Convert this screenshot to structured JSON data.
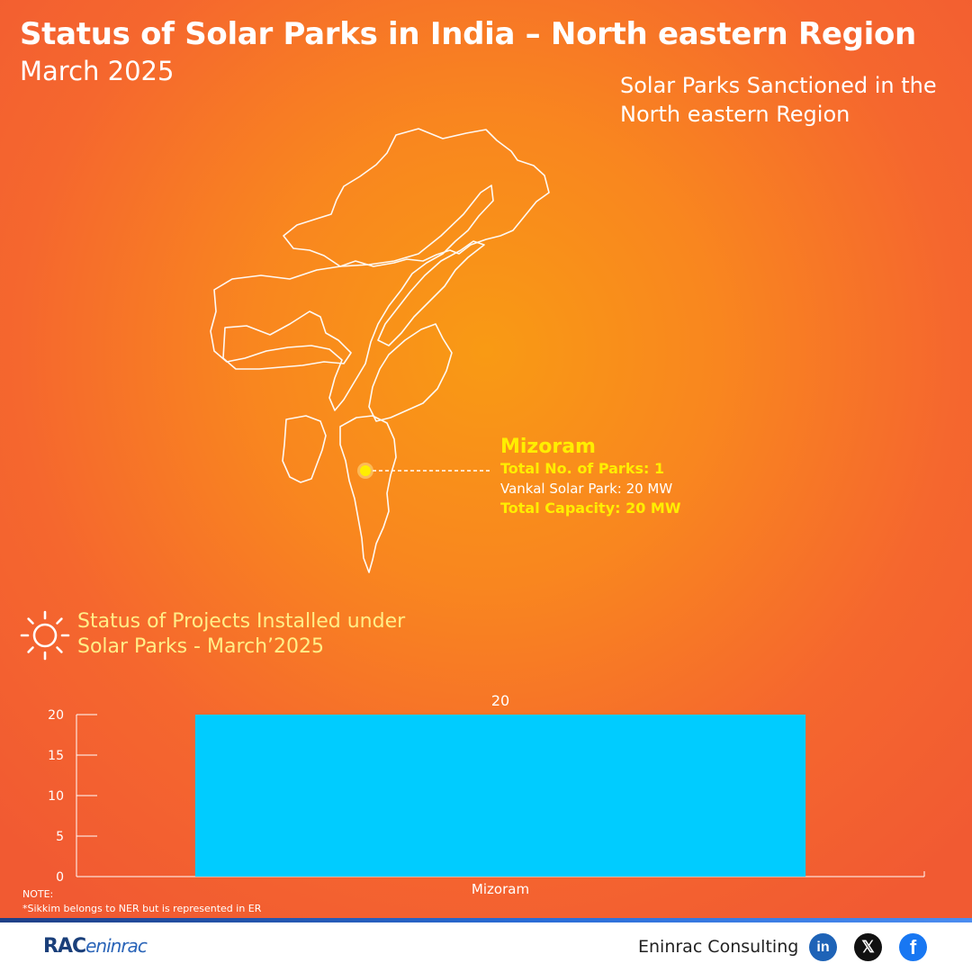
{
  "header": {
    "title": "Status of Solar Parks in India – North eastern Region",
    "subtitle": "March 2025"
  },
  "map": {
    "caption": "Solar Parks Sanctioned in the North eastern Region",
    "callout": {
      "state": "Mizoram",
      "total_parks": "Total No. of Parks: 1",
      "park": "Vankal Solar Park: 20 MW",
      "total_capacity": "Total Capacity: 20 MW"
    },
    "marker_color": "#ffee00"
  },
  "status_heading": {
    "line1": "Status of Projects Installed under",
    "line2": "Solar Parks - March’2025",
    "icon": "sun-icon"
  },
  "chart_data": {
    "type": "bar",
    "categories": [
      "Mizoram"
    ],
    "values": [
      20
    ],
    "data_labels": [
      "20"
    ],
    "yticks": [
      0,
      5,
      10,
      15,
      20
    ],
    "ylim": [
      0,
      20
    ],
    "bar_color": "#00ccff",
    "grid": false,
    "legend": "none"
  },
  "note": {
    "label": "NOTE:",
    "text": "*Sikkim belongs to NER but is represented in ER"
  },
  "footer": {
    "logo_left": "RAC",
    "logo_right": "eninrac",
    "brand": "Eninrac Consulting",
    "social": [
      {
        "name": "linkedin-icon",
        "glyph": "in"
      },
      {
        "name": "x-icon",
        "glyph": "𝕏"
      },
      {
        "name": "facebook-icon",
        "glyph": "f"
      }
    ]
  }
}
